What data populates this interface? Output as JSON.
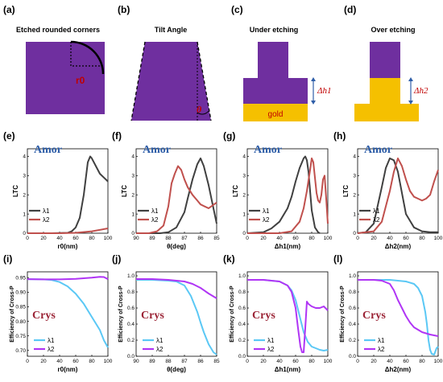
{
  "figure": {
    "colors": {
      "purple": "#6f2f9f",
      "gold": "#f5c000",
      "red_label": "#c00000",
      "blue_label": "#2e5ea8",
      "crys_label": "#9b2335",
      "dark": "#404040",
      "red": "#c0504d",
      "cyan": "#5bc8f5",
      "violet": "#b035f5"
    },
    "row1": {
      "panels": [
        {
          "letter": "(a)",
          "title": "Etched rounded corners",
          "label": "r0"
        },
        {
          "letter": "(b)",
          "title": "Tilt Angle",
          "label": "θ"
        },
        {
          "letter": "(c)",
          "title": "Under etching",
          "label": "Δh1",
          "material": "gold"
        },
        {
          "letter": "(d)",
          "title": "Over etching",
          "label": "Δh2"
        }
      ]
    }
  },
  "chart_data": [
    {
      "id": "e",
      "letter": "(e)",
      "type": "line",
      "annotation": "Amor",
      "ylabel": "LTC",
      "xlabel": "r0(nm)",
      "x_ticks": [
        "0",
        "20",
        "40",
        "60",
        "80",
        "100"
      ],
      "y_ticks": [
        "0",
        "1",
        "2",
        "3",
        "4"
      ],
      "xlim": [
        0,
        100
      ],
      "ylim": [
        0,
        4.4
      ],
      "legend": [
        "λ1",
        "λ2"
      ],
      "series": [
        {
          "name": "λ1",
          "color": "#404040",
          "x": [
            0,
            30,
            50,
            55,
            60,
            65,
            70,
            75,
            78,
            80,
            85,
            90,
            95,
            100
          ],
          "y": [
            0,
            0,
            0.02,
            0.1,
            0.3,
            0.8,
            2.0,
            3.7,
            4.0,
            3.9,
            3.5,
            3.1,
            2.9,
            2.7
          ]
        },
        {
          "name": "λ2",
          "color": "#c0504d",
          "x": [
            0,
            20,
            40,
            60,
            80,
            100
          ],
          "y": [
            0,
            0,
            0,
            0.02,
            0.1,
            0.25
          ]
        }
      ]
    },
    {
      "id": "f",
      "letter": "(f)",
      "type": "line",
      "annotation": "Amor",
      "ylabel": "LTC",
      "xlabel": "θ(deg)",
      "x_ticks": [
        "90",
        "89",
        "88",
        "87",
        "86",
        "85"
      ],
      "y_ticks": [
        "0",
        "1",
        "2",
        "3",
        "4"
      ],
      "xlim": [
        90,
        85
      ],
      "ylim": [
        0,
        4.4
      ],
      "legend": [
        "λ1",
        "λ2"
      ],
      "series": [
        {
          "name": "λ1",
          "color": "#404040",
          "x": [
            90,
            89,
            88.5,
            88,
            87.5,
            87,
            86.8,
            86.5,
            86.2,
            86,
            85.8,
            85.5,
            85.2,
            85
          ],
          "y": [
            0,
            0,
            0,
            0.05,
            0.3,
            1.1,
            1.8,
            2.8,
            3.6,
            3.9,
            3.5,
            2.5,
            1.3,
            0.5
          ]
        },
        {
          "name": "λ2",
          "color": "#c0504d",
          "x": [
            90,
            89.2,
            88.7,
            88.3,
            88,
            87.8,
            87.6,
            87.4,
            87.2,
            87,
            86.8,
            86.5,
            86.2,
            86,
            85.5,
            85
          ],
          "y": [
            0,
            0,
            0.1,
            0.4,
            1.4,
            2.6,
            3.1,
            3.5,
            3.3,
            2.8,
            2.4,
            2.0,
            1.7,
            1.5,
            1.3,
            1.6
          ]
        }
      ]
    },
    {
      "id": "g",
      "letter": "(g)",
      "type": "line",
      "annotation": "Amor",
      "ylabel": "LTC",
      "xlabel": "Δh1(nm)",
      "x_ticks": [
        "0",
        "20",
        "40",
        "60",
        "80",
        "100"
      ],
      "y_ticks": [
        "0",
        "1",
        "2",
        "3",
        "4"
      ],
      "xlim": [
        0,
        100
      ],
      "ylim": [
        0,
        4.4
      ],
      "legend": [
        "λ1",
        "λ2"
      ],
      "series": [
        {
          "name": "λ1",
          "color": "#404040",
          "x": [
            0,
            20,
            30,
            40,
            50,
            55,
            60,
            65,
            70,
            72,
            74,
            76,
            78,
            80,
            84,
            88,
            90
          ],
          "y": [
            0,
            0.05,
            0.25,
            0.6,
            1.3,
            1.9,
            2.7,
            3.4,
            3.9,
            4.0,
            3.8,
            3.2,
            2.2,
            1.2,
            0.3,
            0.05,
            0
          ]
        },
        {
          "name": "λ2",
          "color": "#c0504d",
          "x": [
            0,
            40,
            55,
            65,
            70,
            74,
            78,
            80,
            82,
            84,
            86,
            88,
            90,
            92,
            94,
            96,
            98,
            100
          ],
          "y": [
            0,
            0,
            0.1,
            0.6,
            1.3,
            2.2,
            3.3,
            3.9,
            3.7,
            2.9,
            2.1,
            1.7,
            1.6,
            2.0,
            2.8,
            3.0,
            1.8,
            0.5
          ]
        }
      ]
    },
    {
      "id": "h",
      "letter": "(h)",
      "type": "line",
      "annotation": "Amor",
      "ylabel": "LTC",
      "xlabel": "Δh2(nm)",
      "x_ticks": [
        "0",
        "20",
        "40",
        "60",
        "80",
        "100"
      ],
      "y_ticks": [
        "0",
        "1",
        "2",
        "3",
        "4"
      ],
      "xlim": [
        0,
        100
      ],
      "ylim": [
        0,
        4.4
      ],
      "legend": [
        "λ1",
        "λ2"
      ],
      "series": [
        {
          "name": "λ1",
          "color": "#404040",
          "x": [
            0,
            10,
            20,
            30,
            35,
            40,
            45,
            50,
            55,
            60,
            70,
            80,
            90,
            100
          ],
          "y": [
            0,
            0.05,
            0.5,
            2.4,
            3.4,
            3.9,
            3.8,
            3.2,
            2.1,
            1.0,
            0.3,
            0.1,
            0.05,
            0.05
          ]
        },
        {
          "name": "λ2",
          "color": "#c0504d",
          "x": [
            0,
            20,
            30,
            40,
            45,
            50,
            55,
            60,
            65,
            70,
            75,
            80,
            85,
            90,
            95,
            100
          ],
          "y": [
            0,
            0.1,
            0.6,
            2.2,
            3.2,
            3.9,
            3.5,
            2.8,
            2.2,
            1.9,
            1.8,
            1.7,
            1.8,
            2.0,
            2.7,
            3.3
          ]
        }
      ]
    },
    {
      "id": "i",
      "letter": "(i)",
      "type": "line",
      "annotation": "Crys",
      "ylabel": "Efficiency of Cross-P",
      "xlabel": "r0(nm)",
      "x_ticks": [
        "0",
        "20",
        "40",
        "60",
        "80",
        "100"
      ],
      "y_ticks": [
        "0.70",
        "0.75",
        "0.80",
        "0.85",
        "0.90",
        "0.95"
      ],
      "xlim": [
        0,
        100
      ],
      "ylim": [
        0.68,
        0.97
      ],
      "legend": [
        "λ1",
        "λ2"
      ],
      "series": [
        {
          "name": "λ1",
          "color": "#5bc8f5",
          "x": [
            0,
            20,
            30,
            40,
            50,
            60,
            70,
            80,
            90,
            95,
            100
          ],
          "y": [
            0.945,
            0.944,
            0.942,
            0.935,
            0.92,
            0.895,
            0.86,
            0.815,
            0.77,
            0.735,
            0.71
          ]
        },
        {
          "name": "λ2",
          "color": "#b035f5",
          "x": [
            0,
            20,
            40,
            60,
            80,
            90,
            95,
            100
          ],
          "y": [
            0.945,
            0.944,
            0.944,
            0.946,
            0.95,
            0.953,
            0.952,
            0.945
          ]
        }
      ]
    },
    {
      "id": "j",
      "letter": "(j)",
      "type": "line",
      "annotation": "Crys",
      "ylabel": "Efficiency of Cross-P",
      "xlabel": "θ(deg)",
      "x_ticks": [
        "90",
        "89",
        "88",
        "87",
        "86",
        "85"
      ],
      "y_ticks": [
        "0.0",
        "0.2",
        "0.4",
        "0.6",
        "0.8",
        "1.0"
      ],
      "xlim": [
        90,
        85
      ],
      "ylim": [
        0,
        1.05
      ],
      "legend": [
        "λ1",
        "λ2"
      ],
      "series": [
        {
          "name": "λ1",
          "color": "#5bc8f5",
          "x": [
            90,
            89,
            88,
            87.5,
            87,
            86.6,
            86.2,
            86,
            85.8,
            85.5,
            85.2,
            85
          ],
          "y": [
            0.95,
            0.95,
            0.94,
            0.93,
            0.88,
            0.75,
            0.55,
            0.42,
            0.3,
            0.15,
            0.05,
            0.02
          ]
        },
        {
          "name": "λ2",
          "color": "#b035f5",
          "x": [
            90,
            89,
            88,
            87,
            86.5,
            86,
            85.5,
            85
          ],
          "y": [
            0.96,
            0.96,
            0.95,
            0.93,
            0.9,
            0.85,
            0.78,
            0.72
          ]
        }
      ]
    },
    {
      "id": "k",
      "letter": "(k)",
      "type": "line",
      "annotation": "Crys",
      "ylabel": "Efficiency of Cross-P",
      "xlabel": "Δh1(nm)",
      "x_ticks": [
        "0",
        "20",
        "40",
        "60",
        "80",
        "100"
      ],
      "y_ticks": [
        "0.0",
        "0.2",
        "0.4",
        "0.6",
        "0.8",
        "1.0"
      ],
      "xlim": [
        0,
        100
      ],
      "ylim": [
        0,
        1.05
      ],
      "legend": [
        "λ1",
        "λ2"
      ],
      "series": [
        {
          "name": "λ1",
          "color": "#5bc8f5",
          "x": [
            0,
            20,
            40,
            50,
            55,
            60,
            65,
            70,
            75,
            80,
            85,
            90,
            95,
            100
          ],
          "y": [
            0.95,
            0.95,
            0.93,
            0.88,
            0.82,
            0.7,
            0.5,
            0.3,
            0.18,
            0.12,
            0.1,
            0.08,
            0.07,
            0.08
          ]
        },
        {
          "name": "λ2",
          "color": "#b035f5",
          "x": [
            0,
            20,
            40,
            50,
            55,
            60,
            63,
            66,
            68,
            70,
            72,
            74,
            76,
            80,
            85,
            90,
            95,
            100
          ],
          "y": [
            0.95,
            0.95,
            0.93,
            0.88,
            0.8,
            0.6,
            0.35,
            0.12,
            0.05,
            0.05,
            0.35,
            0.68,
            0.65,
            0.62,
            0.6,
            0.6,
            0.62,
            0.57
          ]
        }
      ]
    },
    {
      "id": "l",
      "letter": "(l)",
      "type": "line",
      "annotation": "Crys",
      "ylabel": "Efficiency of Cross-P",
      "xlabel": "Δh2(nm)",
      "x_ticks": [
        "0",
        "20",
        "40",
        "60",
        "80",
        "100"
      ],
      "y_ticks": [
        "0.0",
        "0.2",
        "0.4",
        "0.6",
        "0.8",
        "1.0"
      ],
      "xlim": [
        0,
        100
      ],
      "ylim": [
        0,
        1.05
      ],
      "legend": [
        "λ1",
        "λ2"
      ],
      "series": [
        {
          "name": "λ1",
          "color": "#5bc8f5",
          "x": [
            0,
            20,
            40,
            50,
            60,
            70,
            75,
            80,
            84,
            86,
            88,
            90,
            92,
            95,
            98,
            100
          ],
          "y": [
            0.95,
            0.95,
            0.95,
            0.94,
            0.93,
            0.9,
            0.85,
            0.75,
            0.55,
            0.4,
            0.2,
            0.08,
            0.03,
            0.02,
            0.1,
            0.12
          ]
        },
        {
          "name": "λ2",
          "color": "#b035f5",
          "x": [
            0,
            20,
            30,
            40,
            45,
            50,
            55,
            60,
            65,
            70,
            80,
            90,
            100
          ],
          "y": [
            0.95,
            0.95,
            0.94,
            0.9,
            0.82,
            0.7,
            0.6,
            0.5,
            0.42,
            0.36,
            0.3,
            0.27,
            0.25
          ]
        }
      ]
    }
  ]
}
